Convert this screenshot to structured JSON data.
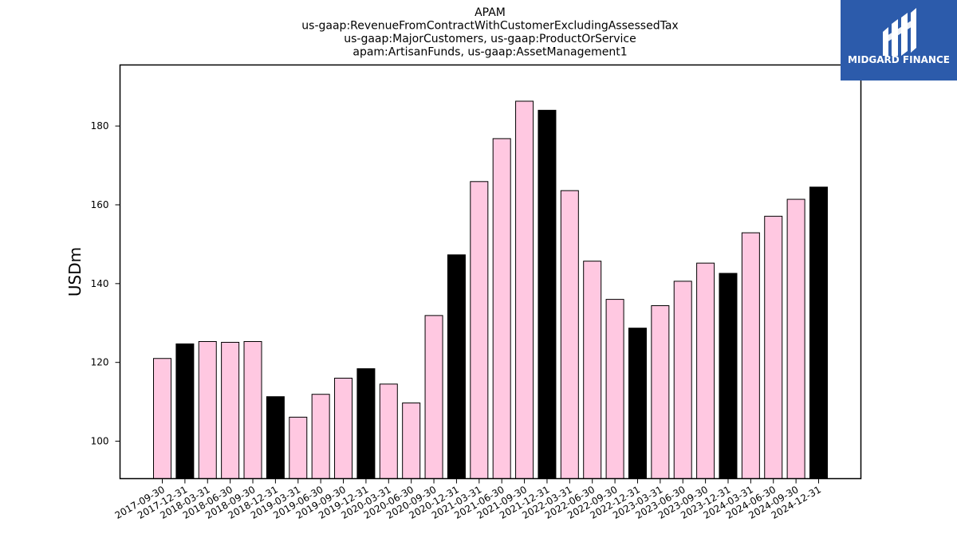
{
  "chart_data": {
    "type": "bar",
    "title_lines": [
      "APAM",
      "us-gaap:RevenueFromContractWithCustomerExcludingAssessedTax",
      "us-gaap:MajorCustomers, us-gaap:ProductOrService",
      "apam:ArtisanFunds, us-gaap:AssetManagement1"
    ],
    "xlabel": "",
    "ylabel": "USDm",
    "ylim": [
      90.5,
      195.5
    ],
    "yticks": [
      100,
      120,
      140,
      160,
      180
    ],
    "categories": [
      "2017-09-30",
      "2017-12-31",
      "2018-03-31",
      "2018-06-30",
      "2018-09-30",
      "2018-12-31",
      "2019-03-31",
      "2019-06-30",
      "2019-09-30",
      "2019-12-31",
      "2020-03-31",
      "2020-06-30",
      "2020-09-30",
      "2020-12-31",
      "2021-03-31",
      "2021-06-30",
      "2021-09-30",
      "2021-12-31",
      "2022-03-31",
      "2022-06-30",
      "2022-09-30",
      "2022-12-31",
      "2023-03-31",
      "2023-06-30",
      "2023-09-30",
      "2023-12-31",
      "2024-03-31",
      "2024-06-30",
      "2024-09-30",
      "2024-12-31"
    ],
    "values": [
      121.0,
      124.7,
      125.3,
      125.1,
      125.3,
      111.3,
      106.1,
      111.9,
      116.0,
      118.4,
      114.5,
      109.7,
      131.9,
      147.3,
      165.9,
      176.8,
      186.3,
      184.0,
      163.6,
      145.7,
      136.0,
      128.7,
      134.4,
      140.6,
      145.2,
      142.6,
      152.9,
      157.1,
      161.4,
      164.5
    ],
    "bar_colors": [
      "#ffc8e1",
      "#000000",
      "#ffc8e1",
      "#ffc8e1",
      "#ffc8e1",
      "#000000",
      "#ffc8e1",
      "#ffc8e1",
      "#ffc8e1",
      "#000000",
      "#ffc8e1",
      "#ffc8e1",
      "#ffc8e1",
      "#000000",
      "#ffc8e1",
      "#ffc8e1",
      "#ffc8e1",
      "#000000",
      "#ffc8e1",
      "#ffc8e1",
      "#ffc8e1",
      "#000000",
      "#ffc8e1",
      "#ffc8e1",
      "#ffc8e1",
      "#000000",
      "#ffc8e1",
      "#ffc8e1",
      "#ffc8e1",
      "#000000"
    ],
    "grid": false,
    "legend": "none"
  },
  "logo": {
    "text": "MIDGARD FINANCE",
    "background": "#2c5bab",
    "icon": "midgard-m-logo-icon"
  }
}
